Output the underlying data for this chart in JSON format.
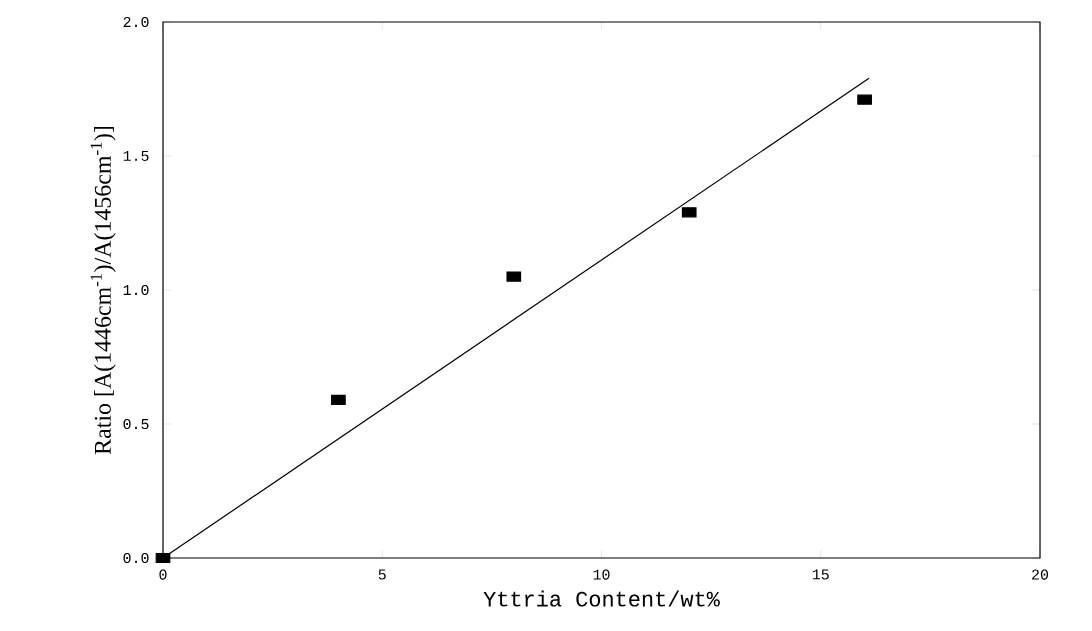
{
  "chart_data": {
    "type": "scatter",
    "xlabel": "Yttria Content/wt%",
    "ylabel": "Ratio [A(1446cm$^{-1}$)/A(1456cm$^{-1}$)]",
    "xlim": [
      0,
      20
    ],
    "ylim": [
      0,
      2
    ],
    "xticks": [
      0,
      5,
      10,
      15,
      20
    ],
    "yticks": [
      {
        "value": 0,
        "label": "0.0"
      },
      {
        "value": 0.5,
        "label": "0.5"
      },
      {
        "value": 1,
        "label": "1.0"
      },
      {
        "value": 1.5,
        "label": "1.5"
      },
      {
        "value": 2,
        "label": "2.0"
      }
    ],
    "grid": false,
    "series": [
      {
        "marker": "square",
        "color": "#000000",
        "x": [
          0,
          4,
          8,
          12,
          16
        ],
        "values": [
          0,
          0.59,
          1.05,
          1.29,
          1.71
        ]
      },
      {
        "type": "line",
        "marker": "none",
        "line_style": "solid",
        "color": "#000000",
        "x": [
          0,
          16.1
        ],
        "values": [
          0,
          1.79
        ]
      }
    ]
  }
}
